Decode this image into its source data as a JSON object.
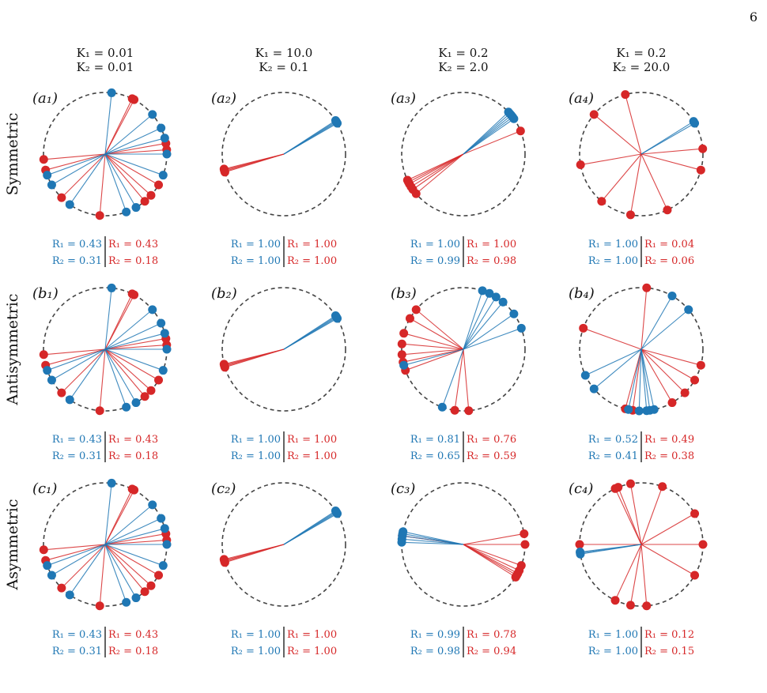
{
  "page_number": "6",
  "colors": {
    "blue": "#1f77b4",
    "red": "#d62728",
    "circle": "#444444"
  },
  "columns": [
    {
      "k1": "K₁ = 0.01",
      "k2": "K₂ = 0.01"
    },
    {
      "k1": "K₁ = 10.0",
      "k2": "K₂ = 0.1"
    },
    {
      "k1": "K₁ = 0.2",
      "k2": "K₂ = 2.0"
    },
    {
      "k1": "K₁ = 0.2",
      "k2": "K₂ = 20.0"
    }
  ],
  "rows": [
    {
      "label": "Symmetric"
    },
    {
      "label": "Antisymmetric"
    },
    {
      "label": "Asymmetric"
    }
  ],
  "panels": [
    {
      "tag": "(a₁)",
      "r1_blue": "R₁ = 0.43",
      "r2_blue": "R₂ = 0.31",
      "r1_red": "R₁ = 0.43",
      "r2_red": "R₂ = 0.18",
      "blue_angles": [
        84,
        40,
        0,
        15,
        25,
        340,
        235,
        210,
        200,
        290,
        300
      ],
      "red_angles": [
        62,
        64,
        4,
        10,
        330,
        318,
        310,
        265,
        225,
        195,
        185
      ]
    },
    {
      "tag": "(a₂)",
      "r1_blue": "R₁ = 1.00",
      "r2_blue": "R₂ = 1.00",
      "r1_red": "R₁ = 1.00",
      "r2_red": "R₂ = 1.00",
      "blue_angles": [
        30,
        31,
        32,
        33
      ],
      "red_angles": [
        194,
        195,
        196,
        197
      ]
    },
    {
      "tag": "(a₃)",
      "r1_blue": "R₁ = 1.00",
      "r2_blue": "R₂ = 0.99",
      "r1_red": "R₁ = 1.00",
      "r2_red": "R₂ = 0.98",
      "blue_angles": [
        35,
        37,
        39,
        41,
        43
      ],
      "red_angles": [
        22,
        205,
        207,
        209,
        212,
        215,
        220
      ]
    },
    {
      "tag": "(a₄)",
      "r1_blue": "R₁ = 1.00",
      "r2_blue": "R₂ = 1.00",
      "r1_red": "R₁ = 0.04",
      "r2_red": "R₂ = 0.06",
      "blue_angles": [
        30,
        32
      ],
      "red_angles": [
        105,
        140,
        190,
        230,
        260,
        295,
        345,
        5
      ]
    },
    {
      "tag": "(b₁)",
      "r1_blue": "R₁ = 0.43",
      "r2_blue": "R₂ = 0.31",
      "r1_red": "R₁ = 0.43",
      "r2_red": "R₂ = 0.18",
      "blue_angles": [
        84,
        40,
        0,
        15,
        25,
        340,
        235,
        210,
        200,
        290,
        300
      ],
      "red_angles": [
        62,
        64,
        4,
        10,
        330,
        318,
        310,
        265,
        225,
        195,
        185
      ]
    },
    {
      "tag": "(b₂)",
      "r1_blue": "R₁ = 1.00",
      "r2_blue": "R₂ = 1.00",
      "r1_red": "R₁ = 1.00",
      "r2_red": "R₂ = 1.00",
      "blue_angles": [
        30,
        31,
        32,
        33
      ],
      "red_angles": [
        194,
        195,
        196,
        197
      ]
    },
    {
      "tag": "(b₃)",
      "r1_blue": "R₁ = 0.81",
      "r2_blue": "R₂ = 0.65",
      "r1_red": "R₁ = 0.76",
      "r2_red": "R₂ = 0.59",
      "blue_angles": [
        72,
        65,
        58,
        50,
        35,
        20,
        195,
        250
      ],
      "red_angles": [
        140,
        150,
        165,
        175,
        185,
        192,
        200,
        262,
        275
      ]
    },
    {
      "tag": "(b₄)",
      "r1_blue": "R₁ = 0.52",
      "r2_blue": "R₂ = 0.41",
      "r1_red": "R₁ = 0.49",
      "r2_red": "R₂ = 0.38",
      "blue_angles": [
        60,
        40,
        205,
        220,
        258,
        268,
        275,
        278,
        282
      ],
      "red_angles": [
        85,
        160,
        255,
        262,
        300,
        315,
        330,
        345
      ]
    },
    {
      "tag": "(c₁)",
      "r1_blue": "R₁ = 0.43",
      "r2_blue": "R₂ = 0.31",
      "r1_red": "R₁ = 0.43",
      "r2_red": "R₂ = 0.18",
      "blue_angles": [
        84,
        40,
        0,
        15,
        25,
        340,
        235,
        210,
        200,
        290,
        300
      ],
      "red_angles": [
        62,
        64,
        4,
        10,
        330,
        318,
        310,
        265,
        225,
        195,
        185
      ]
    },
    {
      "tag": "(c₂)",
      "r1_blue": "R₁ = 1.00",
      "r2_blue": "R₂ = 1.00",
      "r1_red": "R₁ = 1.00",
      "r2_red": "R₂ = 1.00",
      "blue_angles": [
        30,
        31,
        32,
        33
      ],
      "red_angles": [
        194,
        195,
        196,
        197
      ]
    },
    {
      "tag": "(c₃)",
      "r1_blue": "R₁ = 0.99",
      "r2_blue": "R₂ = 0.98",
      "r1_red": "R₁ = 0.78",
      "r2_red": "R₂ = 0.94",
      "blue_angles": [
        168,
        170,
        172,
        175,
        178
      ],
      "red_angles": [
        10,
        0,
        340,
        335,
        332,
        330,
        328,
        172
      ]
    },
    {
      "tag": "(c₄)",
      "r1_blue": "R₁ = 1.00",
      "r2_blue": "R₂ = 1.00",
      "r1_red": "R₁ = 0.12",
      "r2_red": "R₂ = 0.15",
      "blue_angles": [
        187,
        188,
        189
      ],
      "red_angles": [
        112,
        115,
        100,
        70,
        30,
        0,
        330,
        275,
        260,
        245,
        180
      ]
    }
  ]
}
